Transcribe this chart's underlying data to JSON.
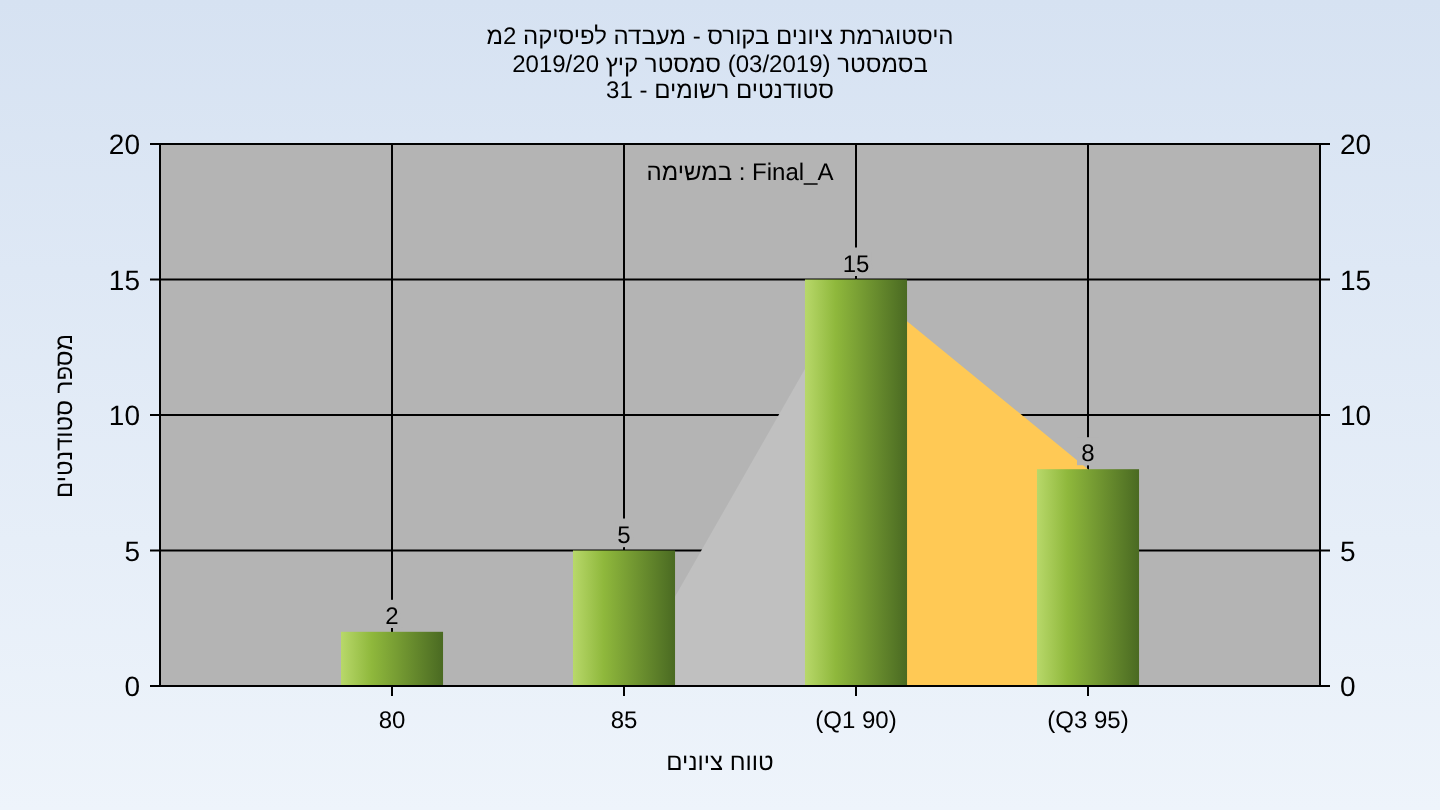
{
  "chart_data": {
    "type": "bar",
    "title": "היסטוגרמת ציונים בקורס - מעבדה לפיסיקה 2מ",
    "subtitle": "בסמסטר (03/2019) סמסטר קיץ 2019/20\nסטודנטים רשומים - 31",
    "xlabel": "טווח ציונים",
    "ylabel": "מספר סטודנטים",
    "annotations": [
      "Final_A : במשימה"
    ],
    "categories": [
      "80",
      "85",
      "(Q1 90)",
      "(Q3 95)"
    ],
    "series": [
      {
        "type": "area",
        "color": "#c0c0c0",
        "values": [
          null,
          0,
          15,
          null
        ]
      },
      {
        "type": "area",
        "color": "#ffc955",
        "values": [
          null,
          null,
          15,
          8
        ]
      },
      {
        "color": "#8fb83c",
        "values": [
          2,
          5,
          15,
          8
        ],
        "value_labels": [
          "2",
          "5",
          "15",
          "8"
        ]
      }
    ],
    "ylim": [
      0,
      20
    ],
    "yticks": [
      0,
      5,
      10,
      15,
      20
    ],
    "y2lim": [
      0,
      20
    ],
    "y2ticks": [
      0,
      5,
      10,
      15,
      20
    ],
    "grid": true
  }
}
